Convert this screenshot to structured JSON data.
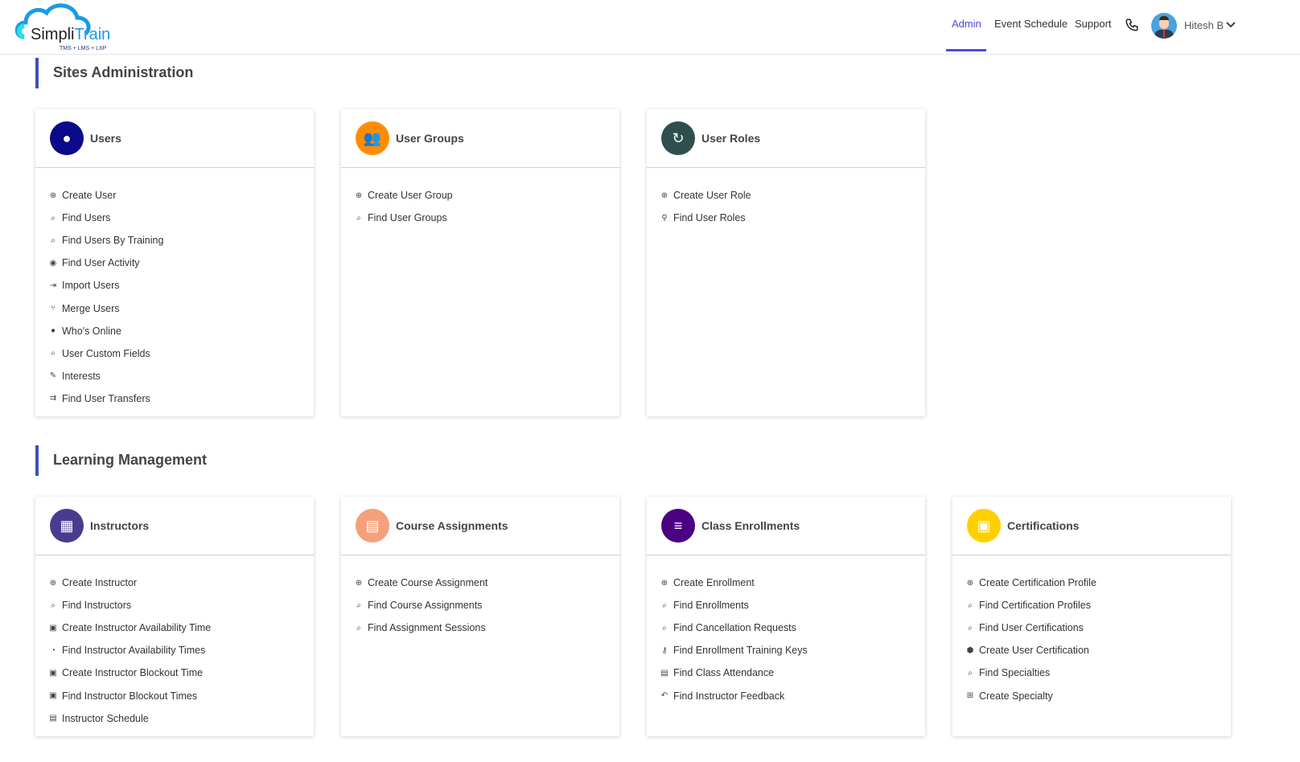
{
  "header": {
    "logo_text_a": "Simpli",
    "logo_text_b": "Train",
    "logo_tagline": "TMS + LMS + LXP",
    "nav": [
      {
        "label": "Admin",
        "active": true
      },
      {
        "label": "Event Schedule"
      },
      {
        "label": "Support"
      }
    ],
    "user_name": "Hitesh B",
    "accent": "#4b4bd6"
  },
  "sections": [
    {
      "title": "Sites Administration",
      "cards": [
        {
          "title": "Users",
          "icon": "user-circle-icon",
          "color": "#0a0a8a",
          "items": [
            {
              "label": "Create User",
              "icon": "plus-circle-icon"
            },
            {
              "label": "Find Users",
              "icon": "search-user-icon"
            },
            {
              "label": "Find Users By Training",
              "icon": "search-doc-icon"
            },
            {
              "label": "Find User Activity",
              "icon": "user-activity-icon"
            },
            {
              "label": "Import Users",
              "icon": "import-icon"
            },
            {
              "label": "Merge Users",
              "icon": "merge-icon"
            },
            {
              "label": "Who's Online",
              "icon": "user-online-icon"
            },
            {
              "label": "User Custom Fields",
              "icon": "search-doc-icon"
            },
            {
              "label": "Interests",
              "icon": "pencil-icon"
            },
            {
              "label": "Find User Transfers",
              "icon": "transfer-icon"
            }
          ]
        },
        {
          "title": "User Groups",
          "icon": "group-icon",
          "color": "#ff8c00",
          "items": [
            {
              "label": "Create User Group",
              "icon": "plus-circle-icon"
            },
            {
              "label": "Find User Groups",
              "icon": "search-user-icon"
            }
          ]
        },
        {
          "title": "User Roles",
          "icon": "role-icon",
          "color": "#2f4f4f",
          "items": [
            {
              "label": "Create User Role",
              "icon": "plus-circle-icon"
            },
            {
              "label": "Find User Roles",
              "icon": "search-icon"
            }
          ]
        }
      ]
    },
    {
      "title": "Learning Management",
      "cards": [
        {
          "title": "Instructors",
          "icon": "instructor-icon",
          "color": "#4b3b8f",
          "items": [
            {
              "label": "Create Instructor",
              "icon": "plus-circle-icon"
            },
            {
              "label": "Find Instructors",
              "icon": "search-user-icon"
            },
            {
              "label": "Create Instructor Availability Time",
              "icon": "time-add-icon"
            },
            {
              "label": "Find Instructor Availability Times",
              "icon": "clock-icon"
            },
            {
              "label": "Create Instructor Blockout Time",
              "icon": "time-add-icon"
            },
            {
              "label": "Find Instructor Blockout Times",
              "icon": "time-add-icon"
            },
            {
              "label": "Instructor Schedule",
              "icon": "calendar-icon"
            }
          ]
        },
        {
          "title": "Course Assignments",
          "icon": "document-icon",
          "color": "#f4a07a",
          "items": [
            {
              "label": "Create Course Assignment",
              "icon": "plus-circle-icon"
            },
            {
              "label": "Find Course Assignments",
              "icon": "search-user-icon"
            },
            {
              "label": "Find Assignment Sessions",
              "icon": "search-user-icon"
            }
          ]
        },
        {
          "title": "Class Enrollments",
          "icon": "list-icon",
          "color": "#4b0082",
          "items": [
            {
              "label": "Create Enrollment",
              "icon": "plus-circle-icon"
            },
            {
              "label": "Find Enrollments",
              "icon": "search-user-icon"
            },
            {
              "label": "Find Cancellation Requests",
              "icon": "search-doc-icon"
            },
            {
              "label": "Find Enrollment Training Keys",
              "icon": "user-key-icon"
            },
            {
              "label": "Find Class Attendance",
              "icon": "calendar-icon"
            },
            {
              "label": "Find Instructor Feedback",
              "icon": "reply-icon"
            }
          ]
        },
        {
          "title": "Certifications",
          "icon": "certificate-icon",
          "color": "#ffd000",
          "items": [
            {
              "label": "Create Certification Profile",
              "icon": "plus-circle-icon"
            },
            {
              "label": "Find Certification Profiles",
              "icon": "search-user-icon"
            },
            {
              "label": "Find User Certifications",
              "icon": "search-user-icon"
            },
            {
              "label": "Create User Certification",
              "icon": "badge-icon"
            },
            {
              "label": "Find Specialties",
              "icon": "search-doc-icon"
            },
            {
              "label": "Create Specialty",
              "icon": "add-box-icon"
            }
          ]
        }
      ]
    }
  ]
}
